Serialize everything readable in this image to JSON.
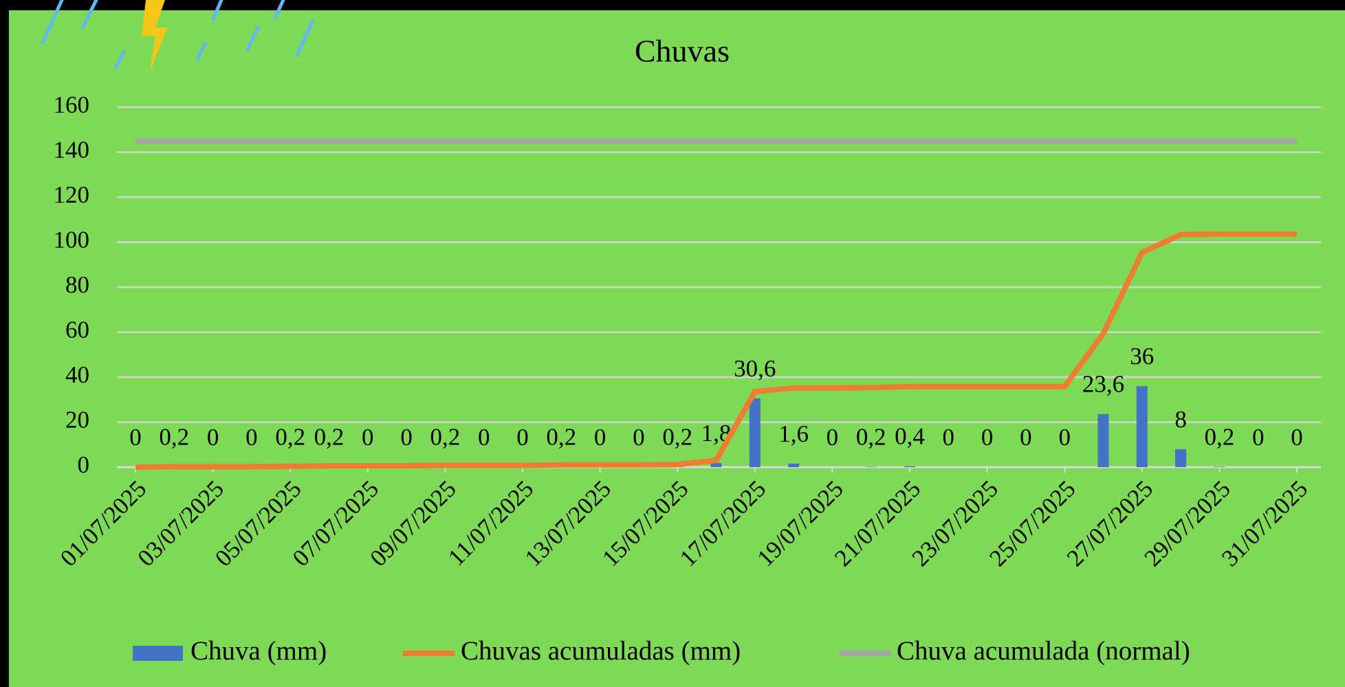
{
  "chart_data": {
    "type": "combo",
    "title": "Chuvas",
    "categories": [
      "01/07/2025",
      null,
      "03/07/2025",
      null,
      "05/07/2025",
      null,
      "07/07/2025",
      null,
      "09/07/2025",
      null,
      "11/07/2025",
      null,
      "13/07/2025",
      null,
      "15/07/2025",
      null,
      "17/07/2025",
      null,
      "19/07/2025",
      null,
      "21/07/2025",
      null,
      "23/07/2025",
      null,
      "25/07/2025",
      null,
      "27/07/2025",
      null,
      "29/07/2025",
      null,
      "31/07/2025"
    ],
    "series": [
      {
        "name": "Chuva (mm)",
        "type": "bar",
        "color": "#4472c4",
        "values": [
          0,
          0.2,
          0,
          0,
          0.2,
          0.2,
          0,
          0,
          0.2,
          0,
          0,
          0.2,
          0,
          0,
          0.2,
          1.8,
          30.6,
          1.6,
          0,
          0.2,
          0.4,
          0,
          0,
          0,
          0,
          23.6,
          36,
          8,
          0.2,
          0,
          0
        ],
        "value_labels": [
          "0",
          "0,2",
          "0",
          "0",
          "0,2",
          "0,2",
          "0",
          "0",
          "0,2",
          "0",
          "0",
          "0,2",
          "0",
          "0",
          "0,2",
          "1,8",
          "30,6",
          "1,6",
          "0",
          "0,2",
          "0,4",
          "0",
          "0",
          "0",
          "0",
          "23,6",
          "36",
          "8",
          "0,2",
          "0",
          "0"
        ]
      },
      {
        "name": "Chuvas acumuladas (mm)",
        "type": "line",
        "color": "#ed7d31",
        "values": [
          0,
          0.2,
          0.2,
          0.2,
          0.4,
          0.6,
          0.6,
          0.6,
          0.8,
          0.8,
          0.8,
          1.0,
          1.0,
          1.0,
          1.2,
          3.0,
          33.6,
          35.2,
          35.2,
          35.4,
          35.8,
          35.8,
          35.8,
          35.8,
          35.8,
          59.4,
          95.4,
          103.4,
          103.6,
          103.6,
          103.6
        ]
      },
      {
        "name": "Chuva acumulada (normal)",
        "type": "line",
        "color": "#a5a5a5",
        "values": [
          145,
          145,
          145,
          145,
          145,
          145,
          145,
          145,
          145,
          145,
          145,
          145,
          145,
          145,
          145,
          145,
          145,
          145,
          145,
          145,
          145,
          145,
          145,
          145,
          145,
          145,
          145,
          145,
          145,
          145,
          145
        ]
      }
    ],
    "ylim": [
      0,
      160
    ],
    "yticks": [
      0,
      20,
      40,
      60,
      80,
      100,
      120,
      140,
      160
    ],
    "grid": true,
    "legend": "bottom"
  }
}
